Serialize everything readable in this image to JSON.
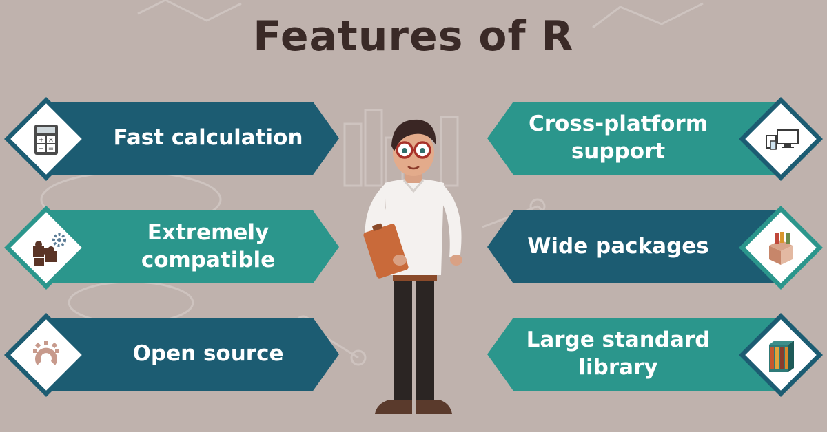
{
  "title": "Features of R",
  "features_left": [
    {
      "label": "Fast calculation",
      "icon": "calculator-icon"
    },
    {
      "label": "Extremely compatible",
      "line1": "Extremely",
      "line2": "compatible",
      "icon": "puzzle-pieces-icon"
    },
    {
      "label": "Open source",
      "icon": "open-source-icon"
    }
  ],
  "features_right": [
    {
      "label": "Cross-platform support",
      "line1": "Cross-platform",
      "line2": "support",
      "icon": "devices-icon"
    },
    {
      "label": "Wide packages",
      "icon": "package-box-icon"
    },
    {
      "label": "Large standard library",
      "line1": "Large standard",
      "line2": "library",
      "icon": "bookshelf-icon"
    }
  ],
  "colors": {
    "background": "#bfb2ad",
    "title": "#3a2a27",
    "banner_dark": "#1c5c72",
    "banner_teal": "#2b968c"
  }
}
